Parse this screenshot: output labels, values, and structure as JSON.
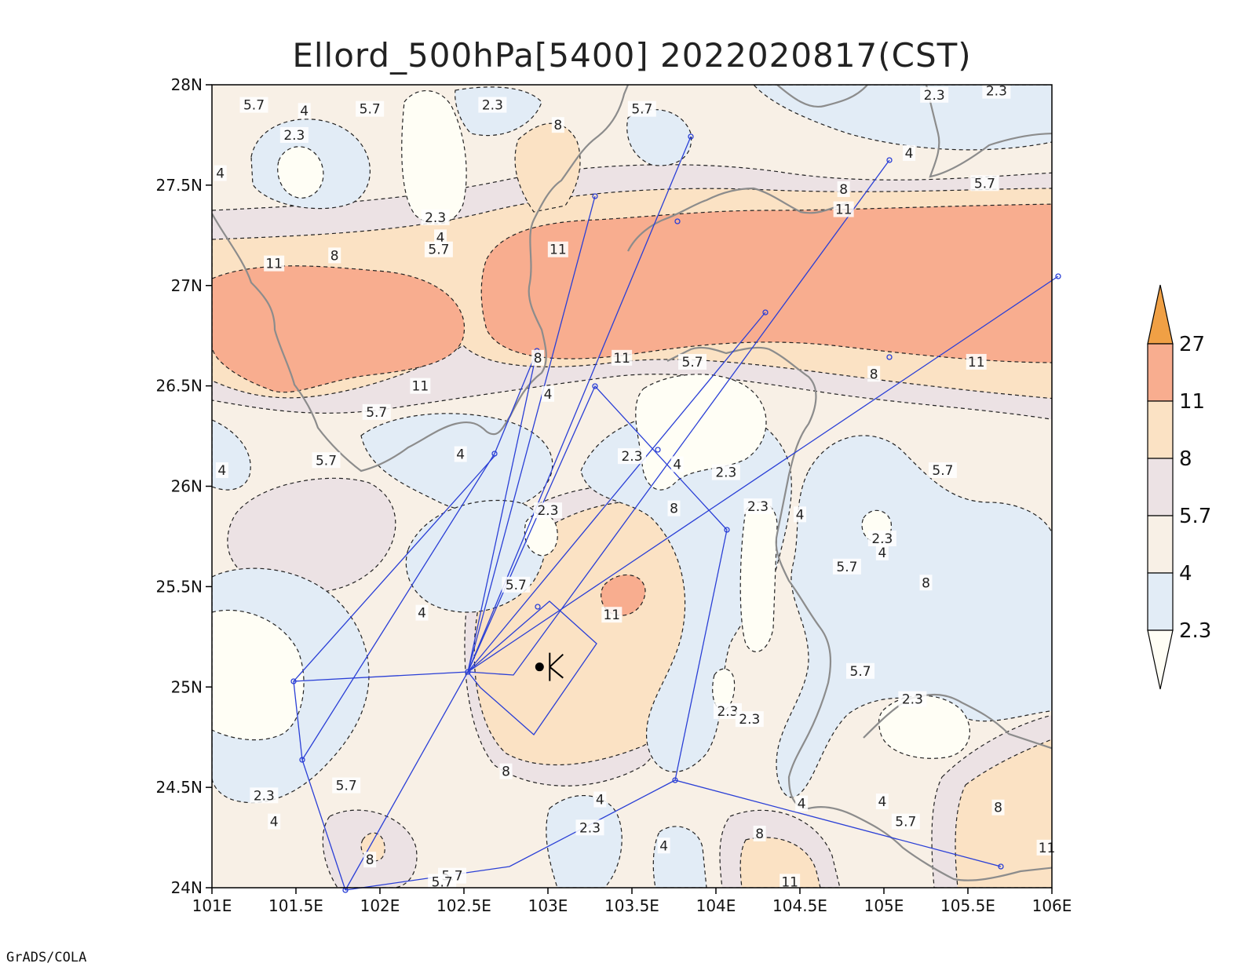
{
  "title": "Ellord_500hPa[5400] 2022020817(CST)",
  "footer": "GrADS/COLA",
  "chart_data": {
    "type": "contour-map",
    "title": "Ellord_500hPa[5400] 2022020817(CST)",
    "x_ticks": [
      "101E",
      "101.5E",
      "102E",
      "102.5E",
      "103E",
      "103.5E",
      "104E",
      "104.5E",
      "105E",
      "105.5E",
      "106E"
    ],
    "y_ticks": [
      "24N",
      "24.5N",
      "25N",
      "25.5N",
      "26N",
      "26.5N",
      "27N",
      "27.5N",
      "28N"
    ],
    "xlim": [
      101,
      106
    ],
    "ylim": [
      24,
      28
    ],
    "levels": [
      2.3,
      4,
      5.7,
      8,
      11,
      27
    ],
    "level_labels": [
      "2.3",
      "4",
      "5.7",
      "8",
      "11",
      "27"
    ],
    "colors": [
      "#fffef5",
      "#e2ecf6",
      "#f8f0e6",
      "#ece2e4",
      "#fbe2c4",
      "#f8ad8f",
      "#f0a045"
    ],
    "contour_labels": [
      {
        "text": "5.7",
        "lon": 101.25,
        "lat": 27.9
      },
      {
        "text": "4",
        "lon": 101.55,
        "lat": 27.87
      },
      {
        "text": "5.7",
        "lon": 101.94,
        "lat": 27.88
      },
      {
        "text": "2.3",
        "lon": 102.67,
        "lat": 27.9
      },
      {
        "text": "8",
        "lon": 103.06,
        "lat": 27.8
      },
      {
        "text": "5.7",
        "lon": 103.56,
        "lat": 27.88
      },
      {
        "text": "2.3",
        "lon": 105.3,
        "lat": 27.95
      },
      {
        "text": "2.3",
        "lon": 105.67,
        "lat": 27.97
      },
      {
        "text": "2.3",
        "lon": 101.49,
        "lat": 27.75
      },
      {
        "text": "4",
        "lon": 101.05,
        "lat": 27.56
      },
      {
        "text": "4",
        "lon": 105.15,
        "lat": 27.66
      },
      {
        "text": "5.7",
        "lon": 105.6,
        "lat": 27.51
      },
      {
        "text": "8",
        "lon": 104.76,
        "lat": 27.48
      },
      {
        "text": "11",
        "lon": 104.76,
        "lat": 27.38
      },
      {
        "text": "2.3",
        "lon": 102.33,
        "lat": 27.34
      },
      {
        "text": "4",
        "lon": 102.36,
        "lat": 27.24
      },
      {
        "text": "5.7",
        "lon": 102.35,
        "lat": 27.18
      },
      {
        "text": "11",
        "lon": 101.37,
        "lat": 27.11
      },
      {
        "text": "8",
        "lon": 101.73,
        "lat": 27.15
      },
      {
        "text": "11",
        "lon": 103.06,
        "lat": 27.18
      },
      {
        "text": "8",
        "lon": 102.94,
        "lat": 26.64
      },
      {
        "text": "11",
        "lon": 103.44,
        "lat": 26.64
      },
      {
        "text": "5.7",
        "lon": 103.86,
        "lat": 26.62
      },
      {
        "text": "11",
        "lon": 105.55,
        "lat": 26.62
      },
      {
        "text": "8",
        "lon": 104.94,
        "lat": 26.56
      },
      {
        "text": "11",
        "lon": 102.24,
        "lat": 26.5
      },
      {
        "text": "4",
        "lon": 103.0,
        "lat": 26.46
      },
      {
        "text": "5.7",
        "lon": 101.98,
        "lat": 26.37
      },
      {
        "text": "2.3",
        "lon": 103.5,
        "lat": 26.15
      },
      {
        "text": "4",
        "lon": 103.77,
        "lat": 26.11
      },
      {
        "text": "2.3",
        "lon": 104.06,
        "lat": 26.07
      },
      {
        "text": "4",
        "lon": 102.48,
        "lat": 26.16
      },
      {
        "text": "5.7",
        "lon": 101.68,
        "lat": 26.13
      },
      {
        "text": "5.7",
        "lon": 105.35,
        "lat": 26.08
      },
      {
        "text": "4",
        "lon": 101.06,
        "lat": 26.08
      },
      {
        "text": "2.3",
        "lon": 103.0,
        "lat": 25.88
      },
      {
        "text": "8",
        "lon": 103.75,
        "lat": 25.89
      },
      {
        "text": "2.3",
        "lon": 104.25,
        "lat": 25.9
      },
      {
        "text": "4",
        "lon": 104.5,
        "lat": 25.86
      },
      {
        "text": "2.3",
        "lon": 104.99,
        "lat": 25.74
      },
      {
        "text": "4",
        "lon": 104.99,
        "lat": 25.67
      },
      {
        "text": "5.7",
        "lon": 104.78,
        "lat": 25.6
      },
      {
        "text": "8",
        "lon": 105.25,
        "lat": 25.52
      },
      {
        "text": "5.7",
        "lon": 102.81,
        "lat": 25.51
      },
      {
        "text": "4",
        "lon": 102.25,
        "lat": 25.37
      },
      {
        "text": "11",
        "lon": 103.38,
        "lat": 25.36
      },
      {
        "text": "5.7",
        "lon": 104.86,
        "lat": 25.08
      },
      {
        "text": "2.3",
        "lon": 105.17,
        "lat": 24.94
      },
      {
        "text": "2.3",
        "lon": 104.07,
        "lat": 24.88
      },
      {
        "text": "2.3",
        "lon": 104.2,
        "lat": 24.84
      },
      {
        "text": "8",
        "lon": 102.75,
        "lat": 24.58
      },
      {
        "text": "5.7",
        "lon": 101.8,
        "lat": 24.51
      },
      {
        "text": "2.3",
        "lon": 101.31,
        "lat": 24.46
      },
      {
        "text": "4",
        "lon": 101.37,
        "lat": 24.33
      },
      {
        "text": "4",
        "lon": 103.31,
        "lat": 24.44
      },
      {
        "text": "4",
        "lon": 104.51,
        "lat": 24.42
      },
      {
        "text": "4",
        "lon": 104.99,
        "lat": 24.43
      },
      {
        "text": "8",
        "lon": 105.68,
        "lat": 24.4
      },
      {
        "text": "5.7",
        "lon": 105.13,
        "lat": 24.33
      },
      {
        "text": "2.3",
        "lon": 103.25,
        "lat": 24.3
      },
      {
        "text": "8",
        "lon": 104.26,
        "lat": 24.27
      },
      {
        "text": "4",
        "lon": 103.69,
        "lat": 24.21
      },
      {
        "text": "8",
        "lon": 101.94,
        "lat": 24.14
      },
      {
        "text": "5.7",
        "lon": 102.43,
        "lat": 24.06
      },
      {
        "text": "5.7",
        "lon": 102.37,
        "lat": 24.03
      },
      {
        "text": "11",
        "lon": 104.44,
        "lat": 24.03
      },
      {
        "text": "11",
        "lon": 105.97,
        "lat": 24.2
      }
    ],
    "station": {
      "lon": 102.95,
      "lat": 25.1
    }
  }
}
